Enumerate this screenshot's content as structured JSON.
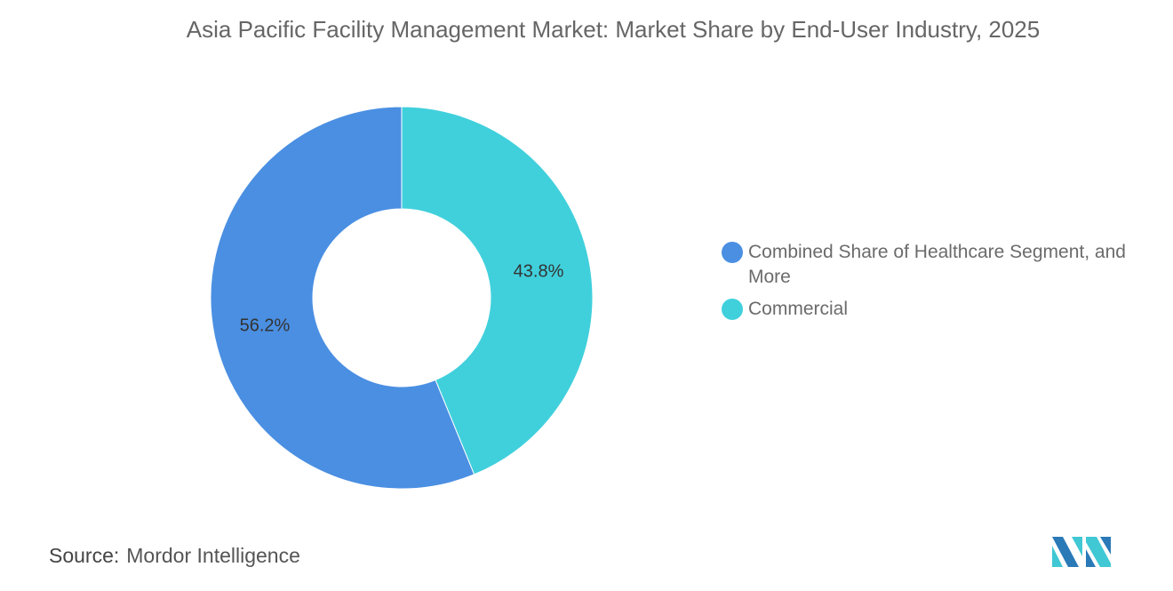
{
  "title": "Asia Pacific Facility Management Market: Market Share by End-User Industry, 2025",
  "chart_data": {
    "type": "pie",
    "variant": "donut",
    "title": "Asia Pacific Facility Management Market: Market Share by End-User Industry, 2025",
    "categories": [
      "Commercial",
      "Combined Share of Healthcare Segment, and More"
    ],
    "values": [
      43.8,
      56.2
    ],
    "labels": [
      "43.8%",
      "56.2%"
    ],
    "colors": [
      "#40d0dc",
      "#4a8fe2"
    ],
    "legend": {
      "placement": "right",
      "entries": [
        "Combined Share of Healthcare Segment, and More",
        "Commercial"
      ]
    }
  },
  "source": {
    "label": "Source:",
    "value": "Mordor Intelligence"
  },
  "logo": "Mordor Intelligence logo"
}
